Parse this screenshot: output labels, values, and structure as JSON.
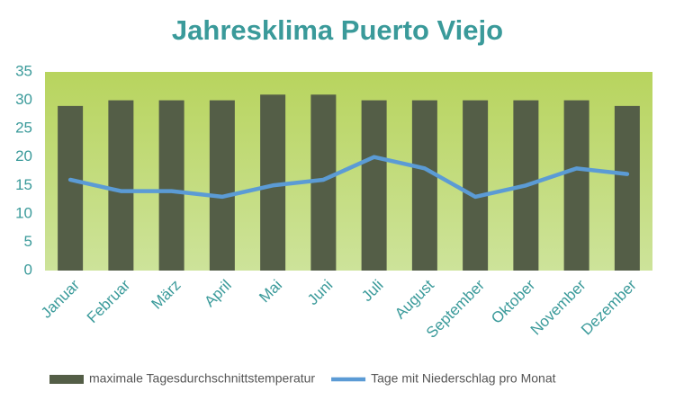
{
  "chart_data": {
    "type": "bar",
    "title": "Jahresklima Puerto Viejo",
    "categories": [
      "Januar",
      "Februar",
      "März",
      "April",
      "Mai",
      "Juni",
      "Juli",
      "August",
      "September",
      "Oktober",
      "November",
      "Dezember"
    ],
    "series": [
      {
        "name": "maximale Tagesdurchschnittstemperatur",
        "type": "bar",
        "color": "#545e47",
        "values": [
          29,
          30,
          30,
          30,
          31,
          31,
          30,
          30,
          30,
          30,
          30,
          29
        ]
      },
      {
        "name": "Tage mit Niederschlag pro Monat",
        "type": "line",
        "color": "#5b9bd5",
        "values": [
          16,
          14,
          14,
          13,
          15,
          16,
          20,
          18,
          13,
          15,
          18,
          17
        ]
      }
    ],
    "ylim": [
      0,
      35
    ],
    "yticks": [
      0,
      5,
      10,
      15,
      20,
      25,
      30,
      35
    ],
    "grid": false,
    "legend": "bottom"
  }
}
